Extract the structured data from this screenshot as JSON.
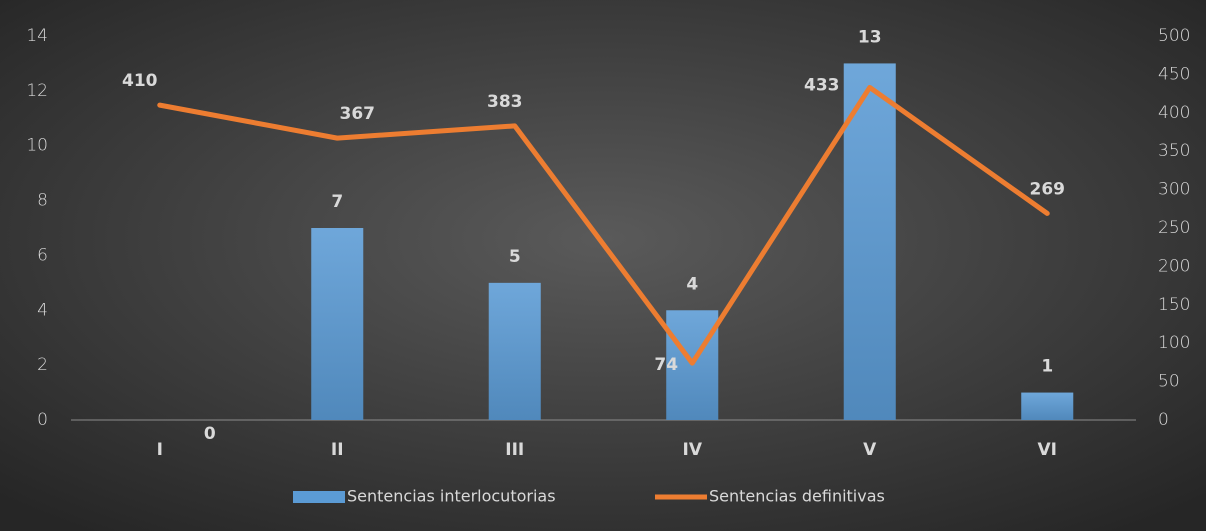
{
  "chart_data": {
    "type": "bar",
    "categories": [
      "I",
      "II",
      "III",
      "IV",
      "V",
      "VI"
    ],
    "series": [
      {
        "name": "Sentencias interlocutorias",
        "type": "bar",
        "color": "#5b9bd5",
        "values": [
          0,
          7,
          5,
          4,
          13,
          1
        ]
      },
      {
        "name": "Sentencias definitivas",
        "type": "line",
        "axis": "y2",
        "color": "#ed7d31",
        "values": [
          410,
          367,
          383,
          74,
          433,
          269
        ]
      }
    ],
    "ylim": [
      0,
      14
    ],
    "yticks": [
      0,
      2,
      4,
      6,
      8,
      10,
      12,
      14
    ],
    "y2lim": [
      0,
      500
    ],
    "y2ticks": [
      0,
      50,
      100,
      150,
      200,
      250,
      300,
      350,
      400,
      450,
      500
    ],
    "legend": "bottom"
  }
}
